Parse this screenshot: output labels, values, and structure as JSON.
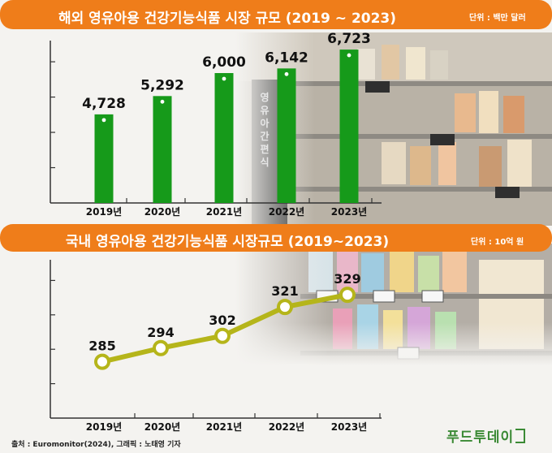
{
  "chart_data": [
    {
      "type": "bar",
      "title": "해외 영유아용 건강기능식품 시장 규모 (2019 ~ 2023)",
      "unit": "단위 : 백만 달러",
      "categories": [
        "2019년",
        "2020년",
        "2021년",
        "2022년",
        "2023년"
      ],
      "values": [
        4728,
        5292,
        6000,
        6142,
        6723
      ],
      "value_labels": [
        "4,728",
        "5,292",
        "6,000",
        "6,142",
        "6,723"
      ],
      "ylim": [
        2000,
        7000
      ],
      "colors": {
        "bar": "#169a1a",
        "banner": "#ef7d1a"
      }
    },
    {
      "type": "line",
      "title": "국내 영유아용 건강기능식품 시장규모 (2019~2023)",
      "unit": "단위 : 10억 원",
      "categories": [
        "2019년",
        "2020년",
        "2021년",
        "2022년",
        "2023년"
      ],
      "values": [
        285,
        294,
        302,
        321,
        329
      ],
      "value_labels": [
        "285",
        "294",
        "302",
        "321",
        "329"
      ],
      "ylim": [
        248,
        352
      ],
      "colors": {
        "line": "#b5b51a",
        "marker": "#ffffff",
        "banner": "#ef7d1a"
      }
    }
  ],
  "shelf_label": "영유아간편식",
  "footer": {
    "source": "출처 : Euromonitor(2024), 그래픽 : 노태영 기자",
    "logo": "푸드투데이"
  }
}
